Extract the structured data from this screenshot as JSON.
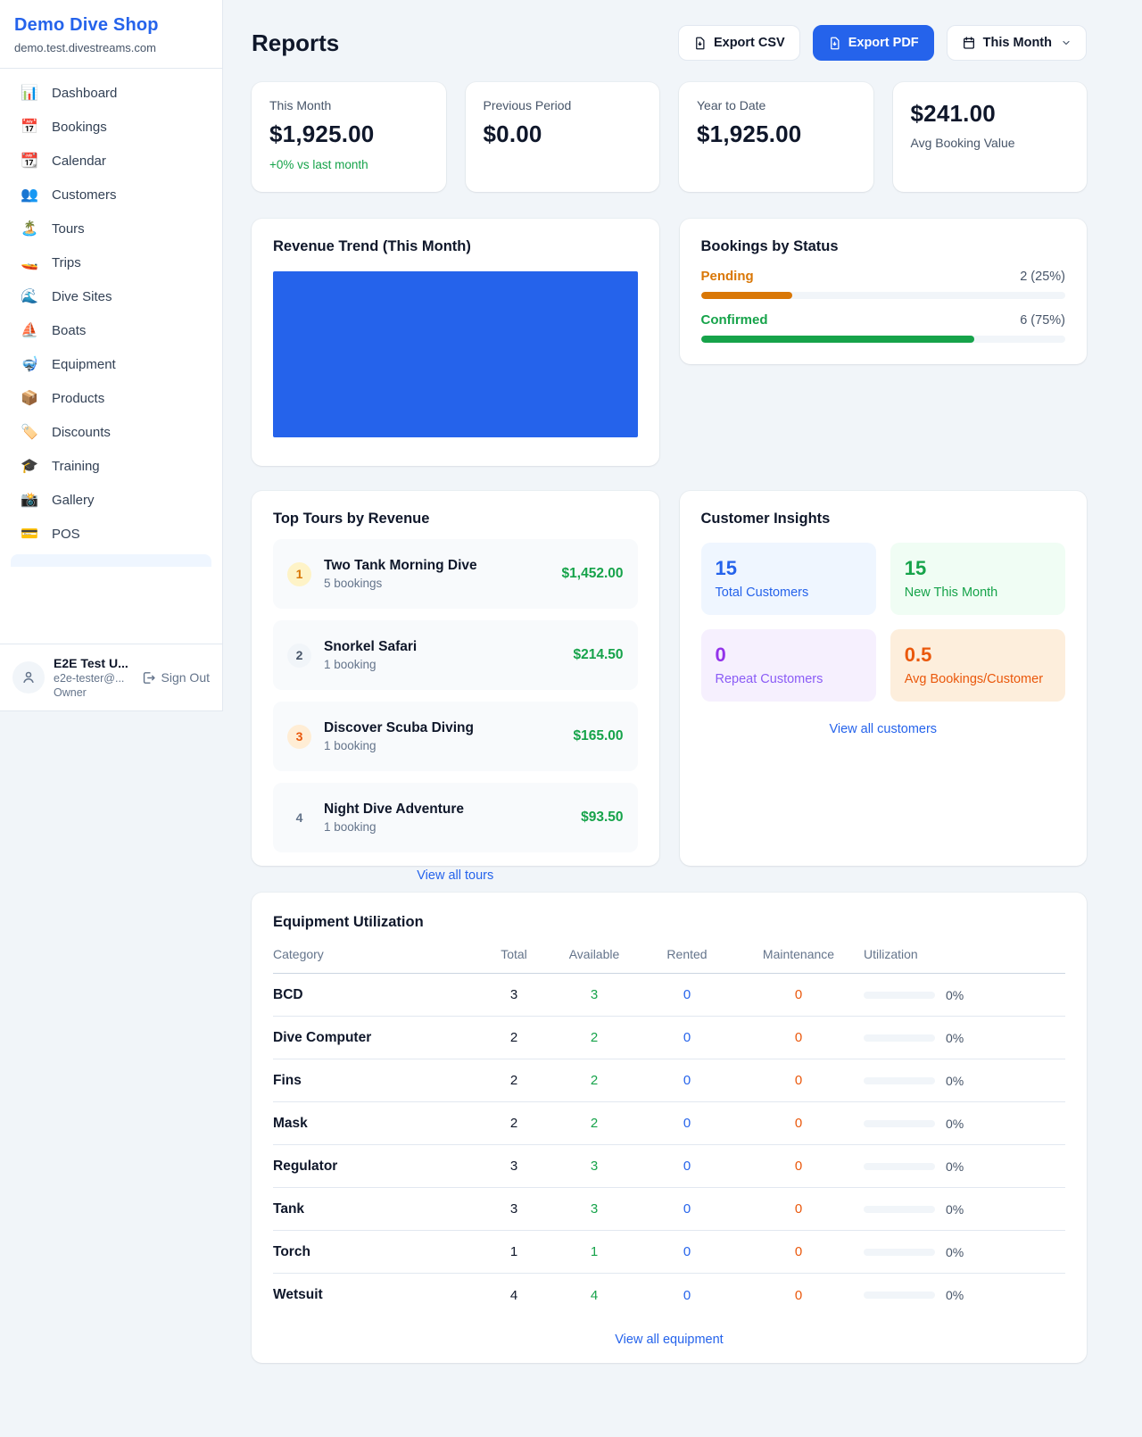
{
  "colors": {
    "accent": "#2563eb",
    "green": "#16a34a",
    "amber": "#d97706",
    "orange": "#ea580c",
    "purple": "#9333ea",
    "muted": "#64748b",
    "page_bg": "#f1f5f9"
  },
  "sidebar": {
    "brand": {
      "name": "Demo Dive Shop",
      "domain": "demo.test.divestreams.com"
    },
    "items": [
      {
        "icon": "📊",
        "label": "Dashboard"
      },
      {
        "icon": "📅",
        "label": "Bookings"
      },
      {
        "icon": "📆",
        "label": "Calendar"
      },
      {
        "icon": "👥",
        "label": "Customers"
      },
      {
        "icon": "🏝️",
        "label": "Tours"
      },
      {
        "icon": "🚤",
        "label": "Trips"
      },
      {
        "icon": "🌊",
        "label": "Dive Sites"
      },
      {
        "icon": "⛵",
        "label": "Boats"
      },
      {
        "icon": "🤿",
        "label": "Equipment"
      },
      {
        "icon": "📦",
        "label": "Products"
      },
      {
        "icon": "🏷️",
        "label": "Discounts"
      },
      {
        "icon": "🎓",
        "label": "Training"
      },
      {
        "icon": "📸",
        "label": "Gallery"
      },
      {
        "icon": "💳",
        "label": "POS"
      }
    ],
    "user": {
      "name": "E2E Test U...",
      "email": "e2e-tester@...",
      "role": "Owner",
      "sign_out": "Sign Out"
    }
  },
  "topbar": {
    "title": "Reports",
    "export_csv": "Export CSV",
    "export_pdf": "Export PDF",
    "period": "This Month"
  },
  "stats": {
    "this_month": {
      "label": "This Month",
      "value": "$1,925.00",
      "delta": "+0% vs last month"
    },
    "previous": {
      "label": "Previous Period",
      "value": "$0.00"
    },
    "ytd": {
      "label": "Year to Date",
      "value": "$1,925.00"
    },
    "avg": {
      "value": "$241.00",
      "label": "Avg Booking Value"
    }
  },
  "revenue_trend": {
    "title": "Revenue Trend (This Month)"
  },
  "status": {
    "title": "Bookings by Status",
    "pending": {
      "label": "Pending",
      "count_text": "2 (25%)",
      "pct": 25
    },
    "confirmed": {
      "label": "Confirmed",
      "count_text": "6 (75%)",
      "pct": 75
    }
  },
  "tours": {
    "title": "Top Tours by Revenue",
    "rows": [
      {
        "rank": "1",
        "name": "Two Tank Morning Dive",
        "bookings": "5 bookings",
        "amount": "$1,452.00"
      },
      {
        "rank": "2",
        "name": "Snorkel Safari",
        "bookings": "1 booking",
        "amount": "$214.50"
      },
      {
        "rank": "3",
        "name": "Discover Scuba Diving",
        "bookings": "1 booking",
        "amount": "$165.00"
      },
      {
        "rank": "4",
        "name": "Night Dive Adventure",
        "bookings": "1 booking",
        "amount": "$93.50"
      }
    ],
    "view_all": "View all tours"
  },
  "insights": {
    "title": "Customer Insights",
    "tiles": [
      {
        "value": "15",
        "label": "Total Customers"
      },
      {
        "value": "15",
        "label": "New This Month"
      },
      {
        "value": "0",
        "label": "Repeat Customers"
      },
      {
        "value": "0.5",
        "label": "Avg Bookings/Customer"
      }
    ],
    "view_all": "View all customers"
  },
  "equipment": {
    "title": "Equipment Utilization",
    "headers": [
      "Category",
      "Total",
      "Available",
      "Rented",
      "Maintenance",
      "Utilization"
    ],
    "rows": [
      {
        "category": "BCD",
        "total": "3",
        "available": "3",
        "rented": "0",
        "maintenance": "0",
        "utilization": "0%"
      },
      {
        "category": "Dive Computer",
        "total": "2",
        "available": "2",
        "rented": "0",
        "maintenance": "0",
        "utilization": "0%"
      },
      {
        "category": "Fins",
        "total": "2",
        "available": "2",
        "rented": "0",
        "maintenance": "0",
        "utilization": "0%"
      },
      {
        "category": "Mask",
        "total": "2",
        "available": "2",
        "rented": "0",
        "maintenance": "0",
        "utilization": "0%"
      },
      {
        "category": "Regulator",
        "total": "3",
        "available": "3",
        "rented": "0",
        "maintenance": "0",
        "utilization": "0%"
      },
      {
        "category": "Tank",
        "total": "3",
        "available": "3",
        "rented": "0",
        "maintenance": "0",
        "utilization": "0%"
      },
      {
        "category": "Torch",
        "total": "1",
        "available": "1",
        "rented": "0",
        "maintenance": "0",
        "utilization": "0%"
      },
      {
        "category": "Wetsuit",
        "total": "4",
        "available": "4",
        "rented": "0",
        "maintenance": "0",
        "utilization": "0%"
      }
    ],
    "view_all": "View all equipment"
  }
}
